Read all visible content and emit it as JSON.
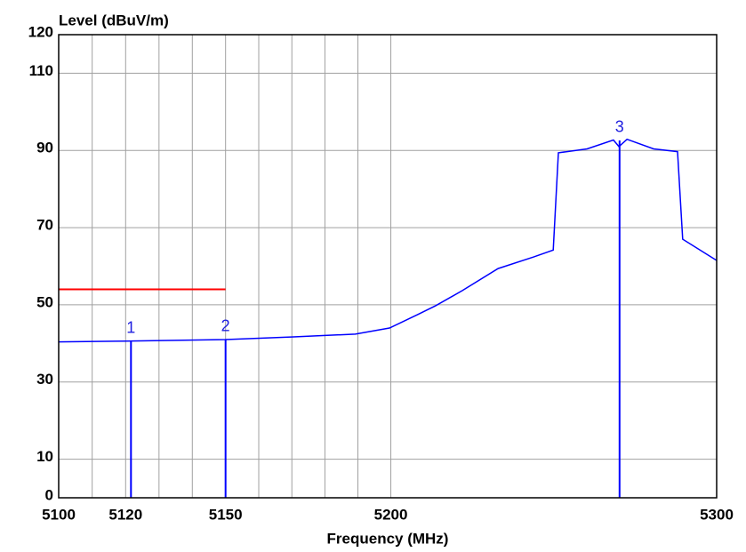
{
  "chart_data": {
    "type": "line",
    "y_label": "Level (dBuV/m)",
    "x_label": "Frequency (MHz)",
    "xscale": "log",
    "xlim": [
      5100,
      5300
    ],
    "xticks": [
      5100,
      5120,
      5150,
      5200,
      5300
    ],
    "x_minor_ticks": [
      5110,
      5130,
      5140,
      5160,
      5170,
      5180,
      5190
    ],
    "ylim": [
      0,
      120
    ],
    "yticks": [
      0,
      10,
      30,
      50,
      70,
      90,
      110,
      120
    ],
    "grid": true,
    "series": [
      {
        "name": "Level",
        "color": "#0000ff",
        "x": [
          5100,
          5120,
          5150,
          5170.5,
          5189.2,
          5199.6,
          5208.2,
          5213.7,
          5221.8,
          5232.7,
          5243.6,
          5249.6,
          5251.2,
          5260,
          5268.1,
          5269.8,
          5272.3,
          5280.5,
          5287.9,
          5289.5,
          5300
        ],
        "values": [
          40.4,
          40.6,
          41,
          41.7,
          42.4,
          44,
          47.5,
          49.8,
          53.7,
          59.4,
          62.4,
          64.2,
          89.4,
          90.4,
          92.7,
          91,
          92.9,
          90.4,
          89.7,
          67,
          61.5
        ]
      }
    ],
    "limit_line": {
      "color": "#ff0000",
      "x": [
        5100,
        5150
      ],
      "value": 54
    },
    "markers": [
      {
        "label": "1",
        "x": 5121.6,
        "value": 40.6
      },
      {
        "label": "2",
        "x": 5150,
        "value": 41
      },
      {
        "label": "3",
        "x": 5270,
        "value": 92.6
      }
    ],
    "marker_color": "#0000ff"
  }
}
